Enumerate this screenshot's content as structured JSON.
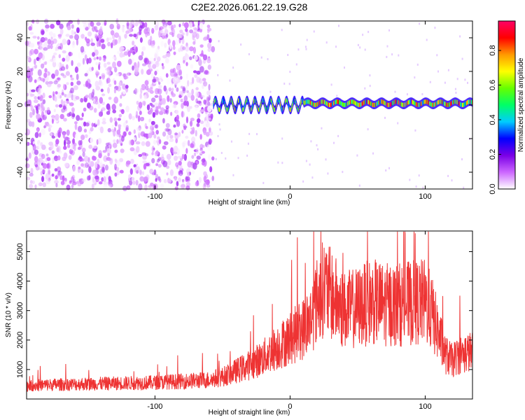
{
  "title": "C2E2.2026.061.22.19.G28",
  "chart_data": [
    {
      "type": "heatmap",
      "xlabel": "Height of straight line (km)",
      "ylabel": "Frequency (Hz)",
      "xlim": [
        -195,
        135
      ],
      "ylim": [
        -50,
        50
      ],
      "x_ticks": [
        -100,
        0,
        100
      ],
      "y_ticks": [
        -40,
        -20,
        0,
        20,
        40
      ],
      "colorbar": {
        "label": "Normalized spectral amplitude",
        "range": [
          0.0,
          0.97
        ],
        "ticks": [
          0.0,
          0.2,
          0.4,
          0.6,
          0.8
        ],
        "colormap": [
          "#ffffff",
          "#cc66ff",
          "#7a00e6",
          "#0000ff",
          "#00ccff",
          "#00ff66",
          "#66ff00",
          "#ffff00",
          "#ff9900",
          "#ff0000",
          "#ff0066"
        ]
      },
      "regions": [
        {
          "x_range": [
            -195,
            -57
          ],
          "description": "broadband noise",
          "amplitude": [
            0.0,
            0.15
          ]
        },
        {
          "x_range": [
            -57,
            10
          ],
          "description": "signal band near 0 Hz",
          "freq_center": [
            -3,
            3
          ],
          "amplitude": [
            0.2,
            0.75
          ]
        },
        {
          "x_range": [
            10,
            135
          ],
          "description": "signal band near 0 Hz",
          "freq_center": [
            0,
            2
          ],
          "amplitude": [
            0.3,
            0.97
          ]
        }
      ]
    },
    {
      "type": "line",
      "xlabel": "Height of straight line (km)",
      "ylabel": "SNR (10 * v/v)",
      "xlim": [
        -195,
        135
      ],
      "ylim": [
        0,
        5700
      ],
      "x_ticks": [
        -100,
        0,
        100
      ],
      "y_ticks": [
        1000,
        2000,
        3000,
        4000,
        5000
      ],
      "color": "#ee3333",
      "series": [
        {
          "x": [
            -195,
            -180,
            -160,
            -140,
            -120,
            -100,
            -80,
            -60,
            -50,
            -40,
            -30,
            -20,
            -10,
            0,
            10,
            15,
            20,
            25,
            30,
            40,
            50,
            60,
            70,
            80,
            90,
            100,
            105,
            110,
            115,
            120,
            125,
            130,
            135
          ],
          "values": [
            450,
            480,
            500,
            520,
            540,
            560,
            600,
            650,
            750,
            950,
            1150,
            1400,
            1750,
            2050,
            2400,
            2700,
            3350,
            3800,
            3550,
            3000,
            3100,
            3300,
            3200,
            3200,
            3250,
            3300,
            2900,
            2200,
            1500,
            1300,
            1500,
            1550,
            1600
          ]
        }
      ]
    }
  ]
}
